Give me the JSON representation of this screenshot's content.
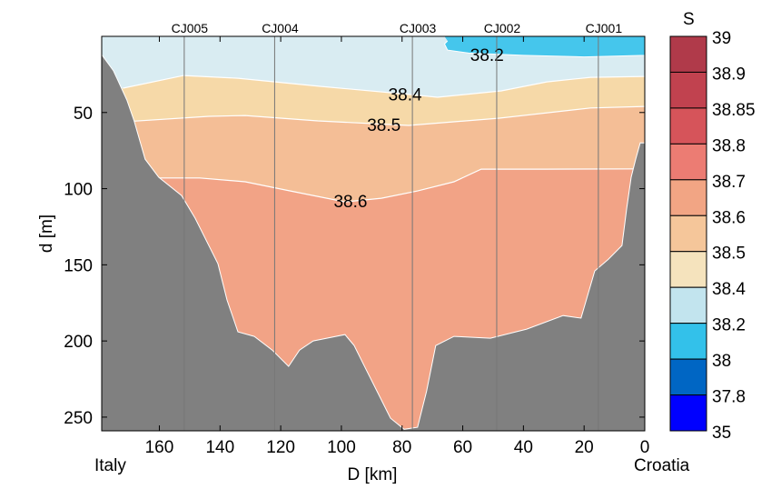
{
  "chart_data": {
    "type": "contour-section",
    "xlabel": "D [km]",
    "ylabel": "d [m]",
    "xlim": [
      179,
      0
    ],
    "ylim": [
      0,
      259
    ],
    "xticks": [
      160,
      140,
      120,
      100,
      80,
      60,
      40,
      20,
      0
    ],
    "yticks": [
      50,
      100,
      150,
      200,
      250
    ],
    "left_label": "Italy",
    "right_label": "Croatia",
    "stations": [
      {
        "name": "CJ005",
        "D": 151.8
      },
      {
        "name": "CJ004",
        "D": 122
      },
      {
        "name": "CJ003",
        "D": 76.6
      },
      {
        "name": "CJ002",
        "D": 48.8
      },
      {
        "name": "CJ001",
        "D": 15.3
      }
    ],
    "background_value_color": "#f2a386",
    "layers": [
      {
        "above_contour": "38.6",
        "color": "#f4be96"
      },
      {
        "above_contour": "38.5",
        "color": "#f6d9a8"
      },
      {
        "above_contour": "38.4",
        "color": "#d9ecf2"
      }
    ],
    "contours": [
      {
        "level": "38.4",
        "label_at": [
          79,
          38
        ],
        "points": [
          [
            172,
            34
          ],
          [
            152,
            25.7
          ],
          [
            134,
            27.5
          ],
          [
            107,
            32.8
          ],
          [
            77.2,
            38.2
          ],
          [
            68.3,
            40
          ],
          [
            47.3,
            35.8
          ],
          [
            32.3,
            29.9
          ],
          [
            17.9,
            26.9
          ],
          [
            0,
            26.3
          ]
        ]
      },
      {
        "level": "38.5",
        "label_at": [
          86,
          58
        ],
        "points": [
          [
            170.7,
            56
          ],
          [
            143.7,
            52.5
          ],
          [
            131.7,
            52
          ],
          [
            107.8,
            55.5
          ],
          [
            77.8,
            58.5
          ],
          [
            47.9,
            53.7
          ],
          [
            17.9,
            47
          ],
          [
            0,
            46
          ]
        ]
      },
      {
        "level": "38.6",
        "label_at": [
          97,
          108
        ],
        "points": [
          [
            164.7,
            93
          ],
          [
            146.7,
            93
          ],
          [
            131.7,
            95.5
          ],
          [
            116.8,
            101.5
          ],
          [
            98.8,
            108.7
          ],
          [
            86.8,
            106.3
          ],
          [
            74.9,
            101.5
          ],
          [
            62.9,
            95.5
          ],
          [
            53.9,
            87.2
          ],
          [
            32.9,
            87.2
          ],
          [
            0,
            87
          ]
        ]
      }
    ],
    "fresh_patch": {
      "level": "38.2",
      "color": "#45c6ec",
      "label_at": [
        52,
        12
      ],
      "points": [
        [
          66,
          0
        ],
        [
          0,
          0
        ],
        [
          0,
          12.5
        ],
        [
          20,
          13.5
        ],
        [
          40,
          12.5
        ],
        [
          58,
          11
        ],
        [
          65,
          9
        ],
        [
          66,
          5
        ],
        [
          65,
          3
        ]
      ]
    },
    "bathymetry": {
      "color": "#808080",
      "points": [
        [
          179,
          12
        ],
        [
          175.1,
          22.7
        ],
        [
          170.7,
          41.8
        ],
        [
          168.3,
          55.5
        ],
        [
          164.7,
          80.6
        ],
        [
          160.2,
          92.5
        ],
        [
          152.7,
          104.5
        ],
        [
          148.2,
          119.4
        ],
        [
          140.7,
          149.3
        ],
        [
          137.7,
          173.1
        ],
        [
          134.1,
          194
        ],
        [
          128.7,
          197
        ],
        [
          122.8,
          206
        ],
        [
          117.4,
          216.7
        ],
        [
          113.8,
          206
        ],
        [
          109.3,
          200
        ],
        [
          98.8,
          195.8
        ],
        [
          95.8,
          203
        ],
        [
          92.8,
          215
        ],
        [
          88.3,
          232.8
        ],
        [
          83.8,
          250.7
        ],
        [
          79.3,
          258
        ],
        [
          74.9,
          256.7
        ],
        [
          71.9,
          232.8
        ],
        [
          68.9,
          203
        ],
        [
          62.9,
          197
        ],
        [
          50.9,
          198.2
        ],
        [
          38.9,
          192.2
        ],
        [
          26.9,
          183.3
        ],
        [
          21,
          185
        ],
        [
          16.5,
          154
        ],
        [
          12,
          146.3
        ],
        [
          7.5,
          137.3
        ],
        [
          6,
          113.4
        ],
        [
          4.5,
          92.5
        ],
        [
          3,
          80.6
        ],
        [
          1.5,
          69.9
        ],
        [
          0,
          70
        ]
      ]
    },
    "colorbar": {
      "title": "S",
      "tick_labels": [
        "39",
        "38.9",
        "38.85",
        "38.8",
        "38.7",
        "38.6",
        "38.5",
        "38.4",
        "38.2",
        "38",
        "37.8",
        "35"
      ],
      "colors": [
        "#b03a4a",
        "#c1424f",
        "#d6545a",
        "#ec7c73",
        "#f2a584",
        "#f5c69a",
        "#f5e3bd",
        "#c2e4ee",
        "#33c1ea",
        "#0066c4",
        "#0000ff"
      ]
    }
  }
}
